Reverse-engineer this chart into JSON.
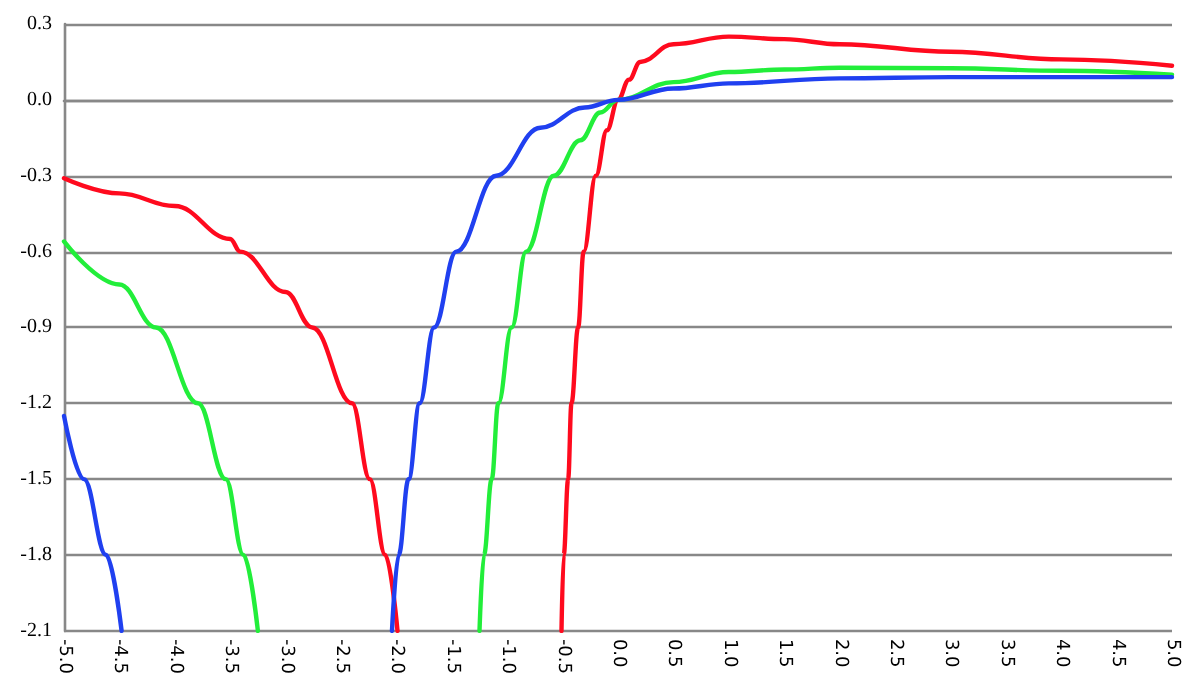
{
  "chart_data": {
    "type": "line",
    "xlim": [
      -5,
      5
    ],
    "xticks": [
      {
        "value": -5,
        "label": "-5.0"
      },
      -4.5,
      {
        "value": -4,
        "label": "-4.0"
      },
      -3.5,
      {
        "value": -3,
        "label": "-3.0"
      },
      -2.5,
      {
        "value": -2,
        "label": "-2.0"
      },
      -1.5,
      {
        "value": -1,
        "label": "-1.0"
      },
      -0.5,
      {
        "value": 0,
        "label": "0.0"
      },
      0.5,
      {
        "value": 1,
        "label": "1.0"
      },
      1.5,
      {
        "value": 2,
        "label": "2.0"
      },
      2.5,
      {
        "value": 3,
        "label": "3.0"
      },
      3.5,
      {
        "value": 4,
        "label": "4.0"
      },
      4.5,
      {
        "value": 5,
        "label": "5.0"
      }
    ],
    "ylim": [
      -2.1,
      0.3
    ],
    "yticks": [
      -2.1,
      -1.8,
      -1.5,
      -1.2,
      -0.9,
      -0.6,
      -0.3,
      {
        "value": 0,
        "label": "0.0"
      },
      0.3
    ],
    "grid": "y",
    "marker": "none",
    "line_style": "solid",
    "series": [
      {
        "color": "#ff0a1e",
        "x": [
          -5,
          -4.5,
          -4,
          -3.5,
          -3.41,
          -3,
          -2.76,
          -2.4,
          -2.24,
          -2.1,
          -1.99,
          -1.5,
          -0.51,
          -0.49,
          -0.45,
          -0.42,
          -0.36,
          -0.31,
          -0.2,
          -0.1,
          0,
          0.1,
          0.2,
          0.5,
          1,
          1.5,
          2,
          3,
          4,
          5
        ],
        "values": [
          -0.31,
          -0.37,
          -0.42,
          -0.55,
          -0.6,
          -0.76,
          -0.9,
          -1.2,
          -1.5,
          -1.8,
          -2.1,
          null,
          -2.1,
          -1.8,
          -1.5,
          -1.2,
          -0.9,
          -0.6,
          -0.3,
          -0.12,
          0,
          0.08,
          0.15,
          0.22,
          0.25,
          0.24,
          0.22,
          0.19,
          0.16,
          0.135
        ]
      },
      {
        "color": "#22ee3a",
        "x": [
          -5,
          -4.5,
          -4.17,
          -3.79,
          -3.54,
          -3.38,
          -3.25,
          -2,
          -1.25,
          -1.21,
          -1.14,
          -1.08,
          -0.96,
          -0.83,
          -0.58,
          -0.34,
          -0.16,
          0,
          0.5,
          1,
          1.5,
          2,
          3,
          4,
          5
        ],
        "values": [
          -0.56,
          -0.73,
          -0.9,
          -1.2,
          -1.5,
          -1.8,
          -2.1,
          null,
          -2.1,
          -1.8,
          -1.5,
          -1.2,
          -0.9,
          -0.6,
          -0.3,
          -0.16,
          -0.05,
          0,
          0.07,
          0.11,
          0.12,
          0.127,
          0.125,
          0.115,
          0.1
        ]
      },
      {
        "color": "#2040f0",
        "x": [
          -5,
          -4.82,
          -4.62,
          -4.48,
          -3,
          -2.04,
          -1.98,
          -1.89,
          -1.79,
          -1.66,
          -1.46,
          -1.1,
          -0.7,
          -0.3,
          0,
          0.5,
          1,
          2,
          3,
          4,
          5
        ],
        "values": [
          -1.25,
          -1.5,
          -1.8,
          -2.1,
          null,
          -2.1,
          -1.8,
          -1.5,
          -1.2,
          -0.9,
          -0.6,
          -0.3,
          -0.11,
          -0.03,
          0,
          0.045,
          0.065,
          0.085,
          0.09,
          0.09,
          0.09
        ]
      }
    ]
  }
}
